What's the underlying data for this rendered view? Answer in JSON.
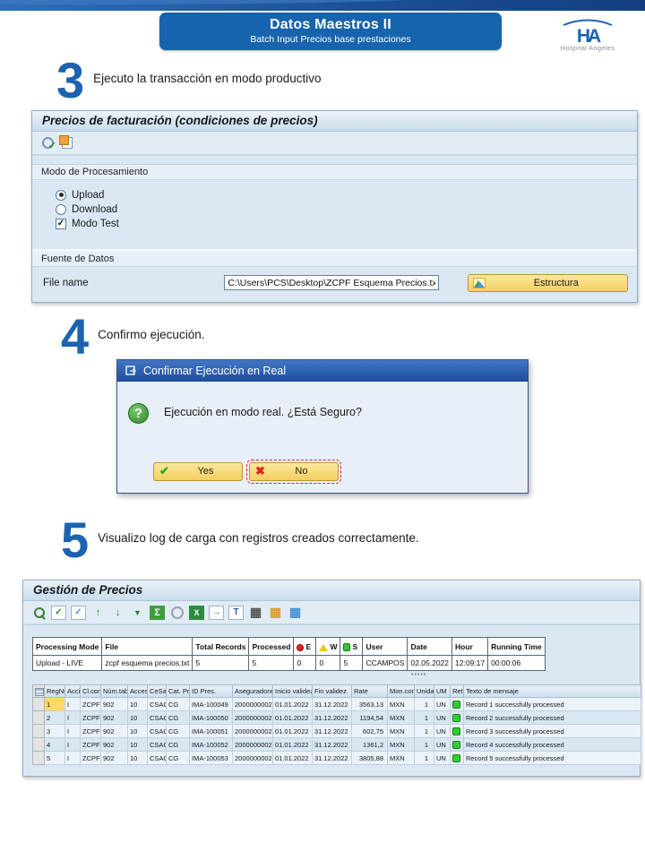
{
  "header": {
    "title": "Datos Maestros II",
    "subtitle": "Batch Input Precios base prestaciones",
    "logo_monogram": "HA",
    "logo_text": "Hospital Angeles"
  },
  "steps": {
    "s3": {
      "number": "3",
      "text": "Ejecuto la transacción en modo productivo"
    },
    "s4": {
      "number": "4",
      "text": "Confirmo ejecución."
    },
    "s5": {
      "number": "5",
      "text": "Visualizo log de carga con registros creados correctamente."
    }
  },
  "screen1": {
    "title": "Precios de facturación (condiciones de precios)",
    "toolbar_icons": [
      "execute-icon",
      "copy-icon"
    ],
    "processing": {
      "label": "Modo de Procesamiento",
      "radios": [
        {
          "label": "Upload",
          "selected": true
        },
        {
          "label": "Download",
          "selected": false
        }
      ],
      "checkbox": {
        "label": "Modo Test",
        "checked": true
      }
    },
    "source": {
      "label": "Fuente de Datos",
      "file_label": "File name",
      "file_value": "C:\\Users\\PCS\\Desktop\\ZCPF Esquema Precios.txt",
      "structure_button": "Estructura"
    }
  },
  "dialog": {
    "title": "Confirmar Ejecución en Real",
    "message": "Ejecución en modo real. ¿Está Seguro?",
    "yes_label": "Yes",
    "no_label": "No"
  },
  "screen2": {
    "title": "Gestión de Precios",
    "toolbar_icons": [
      "choose-detail-icon",
      "check-entries-icon",
      "refresh-icon",
      "sort-asc-icon",
      "sort-desc-icon",
      "filter-icon",
      "sum-icon",
      "clock-icon",
      "excel-export-icon",
      "local-file-export-icon",
      "word-processing-icon",
      "grid-view-icon",
      "pivot-view-icon",
      "layout-change-icon"
    ],
    "summary_table": {
      "headers": [
        {
          "label": "Processing Mode"
        },
        {
          "label": "File"
        },
        {
          "label": "Total Records"
        },
        {
          "label": "Processed"
        },
        {
          "label": "E",
          "icon": "red-circle-icon"
        },
        {
          "label": "W",
          "icon": "yellow-triangle-icon"
        },
        {
          "label": "S",
          "icon": "green-square-icon"
        },
        {
          "label": "User"
        },
        {
          "label": "Date"
        },
        {
          "label": "Hour"
        },
        {
          "label": "Running Time"
        }
      ],
      "row": [
        "Upload - LIVE",
        "zcpf esquema precios.txt",
        "5",
        "5",
        "0",
        "0",
        "5",
        "CCAMPOS",
        "02.05.2022",
        "12:09:17",
        "00:00:06"
      ]
    },
    "log_table": {
      "corner_icon": "select-all-icon",
      "headers": [
        "RegNum",
        "Acción",
        "Cl.cond.",
        "Núm.tabla",
        "Acceso",
        "CeSa",
        "Cat. Pres.",
        "ID Pres.",
        "Aseguradora",
        "Inicio validez",
        "Fin validez",
        "Rate",
        "Mon.cond.",
        "Unidad",
        "UM",
        "RetIc",
        "Texto de mensaje"
      ],
      "rows": [
        [
          "1",
          "I",
          "ZCPF",
          "902",
          "10",
          "CSAC",
          "CG",
          "IMA-100049",
          "2000000002",
          "01.01.2022",
          "31.12.2022",
          "3563,13",
          "MXN",
          "1",
          "UN",
          "led-green",
          "Record 1 successfully processed"
        ],
        [
          "2",
          "I",
          "ZCPF",
          "902",
          "10",
          "CSAC",
          "CG",
          "IMA-100050",
          "2000000002",
          "01.01.2022",
          "31.12.2022",
          "1194,54",
          "MXN",
          "1",
          "UN",
          "led-green",
          "Record 2 successfully processed"
        ],
        [
          "3",
          "I",
          "ZCPF",
          "902",
          "10",
          "CSAC",
          "CG",
          "IMA-100051",
          "2000000002",
          "01.01.2022",
          "31.12.2022",
          "602,75",
          "MXN",
          "1",
          "UN",
          "led-green",
          "Record 3 successfully processed"
        ],
        [
          "4",
          "I",
          "ZCPF",
          "902",
          "10",
          "CSAC",
          "CG",
          "IMA-100052",
          "2000000002",
          "01.01.2022",
          "31.12.2022",
          "1361,2",
          "MXN",
          "1",
          "UN",
          "led-green",
          "Record 4 successfully processed"
        ],
        [
          "5",
          "I",
          "ZCPF",
          "902",
          "10",
          "CSAC",
          "CG",
          "IMA-100053",
          "2000000002",
          "01.01.2022",
          "31.12.2022",
          "3805,88",
          "MXN",
          "1",
          "UN",
          "led-green",
          "Record 5 successfully processed"
        ]
      ]
    }
  }
}
